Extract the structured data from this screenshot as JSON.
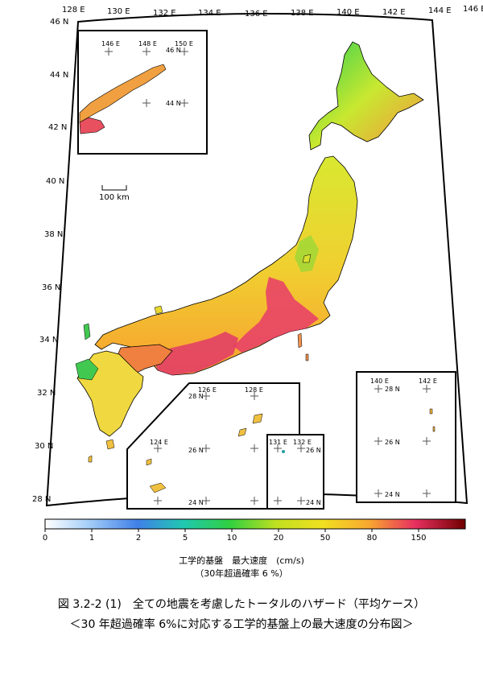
{
  "map": {
    "lon_ticks": [
      "128 E",
      "130 E",
      "132 E",
      "134 E",
      "136 E",
      "138 E",
      "140 E",
      "142 E",
      "144 E",
      "146 E"
    ],
    "lat_ticks": [
      "46 N",
      "44 N",
      "42 N",
      "40 N",
      "38 N",
      "36 N",
      "34 N",
      "32 N",
      "30 N",
      "28 N"
    ],
    "scale_bar": "100 km",
    "inset_north": {
      "lon": [
        "146 E",
        "148 E",
        "150 E"
      ],
      "lat": [
        "46 N",
        "44 N"
      ]
    },
    "inset_ryukyu": {
      "lon": [
        "126 E",
        "128 E",
        "124 E"
      ],
      "lat": [
        "28 N",
        "26 N",
        "24 N"
      ]
    },
    "inset_daito": {
      "lon": [
        "131 E",
        "132 E"
      ],
      "lat": [
        "26 N",
        "24 N"
      ]
    },
    "inset_ogasawara": {
      "lon": [
        "140 E",
        "142 E"
      ],
      "lat": [
        "28 N",
        "26 N",
        "24 N"
      ]
    }
  },
  "colorbar": {
    "ticks": [
      "0",
      "1",
      "2",
      "5",
      "10",
      "20",
      "50",
      "80",
      "150"
    ],
    "colors": [
      "#ffffff",
      "#9fc8f0",
      "#3f7fe0",
      "#20c0c0",
      "#20d040",
      "#a0e020",
      "#f0f000",
      "#f8b030",
      "#f06040",
      "#e02060",
      "#600000"
    ],
    "title": "工学的基盤　最大速度　(cm/s)",
    "subtitle": "（30年超過確率 6 %）"
  },
  "caption": {
    "line1": "図 3.2-2 (1)　全ての地震を考慮したトータルのハザード（平均ケース）",
    "line2": "＜30 年超過確率 6%に対応する工学的基盤上の最大速度の分布図＞"
  }
}
